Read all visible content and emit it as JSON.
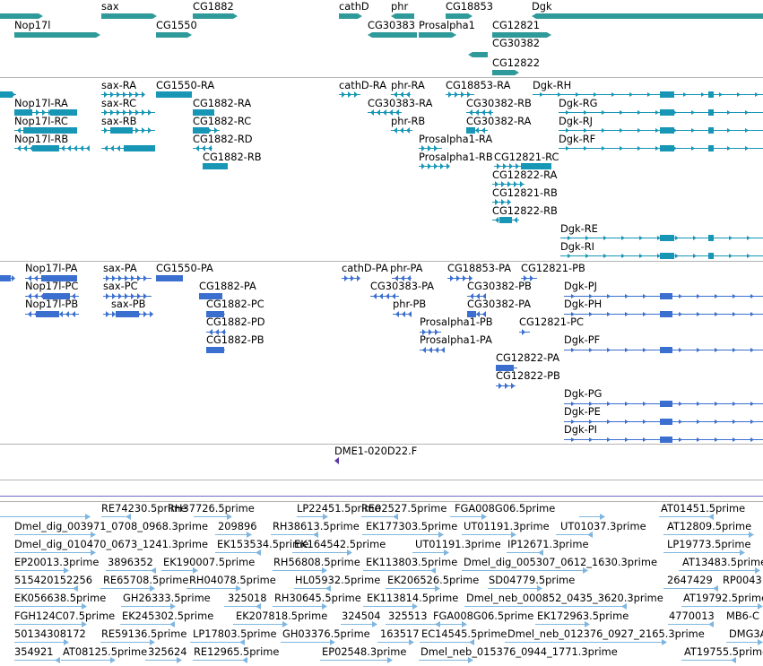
{
  "colors": {
    "gene": "#2f9a9a",
    "mrna": "#1796b6",
    "protein": "#3a6fcf",
    "est": "#7fb6e0",
    "clone": "#5a3aa8",
    "separator": "#b4b4b4"
  },
  "tracks": {
    "genes": {
      "labels": [
        "sax",
        "CG1882",
        "cathD",
        "phr",
        "CG18853",
        "Dgk",
        "Nop17l",
        "CG1550",
        "CG30383",
        "Prosalpha1",
        "CG12821",
        "CG30382",
        "CG12822"
      ]
    },
    "transcripts": {
      "labels": [
        "sax-RA",
        "CG1550-RA",
        "cathD-RA",
        "phr-RA",
        "CG18853-RA",
        "Dgk-RH",
        "Nop17l-RA",
        "sax-RC",
        "CG1882-RA",
        "CG30383-RA",
        "CG30382-RB",
        "Dgk-RG",
        "Nop17l-RC",
        "sax-RB",
        "CG1882-RC",
        "phr-RB",
        "CG30382-RA",
        "Dgk-RJ",
        "Nop17l-RB",
        "CG1882-RD",
        "Prosalpha1-RA",
        "Dgk-RF",
        "CG1882-RB",
        "Prosalpha1-RB",
        "CG12821-RC",
        "CG12822-RA",
        "CG12821-RB",
        "CG12822-RB",
        "Dgk-RE",
        "Dgk-RI"
      ]
    },
    "proteins": {
      "labels": [
        "Nop17l-PA",
        "sax-PA",
        "CG1550-PA",
        "cathD-PA",
        "phr-PA",
        "CG18853-PA",
        "CG12821-PB",
        "Nop17l-PC",
        "sax-PC",
        "CG1882-PA",
        "CG30383-PA",
        "CG30382-PB",
        "Dgk-PJ",
        "Nop17l-PB",
        "sax-PB",
        "CG1882-PC",
        "phr-PB",
        "CG30382-PA",
        "Dgk-PH",
        "CG1882-PD",
        "Prosalpha1-PB",
        "CG12821-PC",
        "CG1882-PB",
        "Prosalpha1-PA",
        "Dgk-PF",
        "CG12822-PA",
        "CG12822-PB",
        "Dgk-PG",
        "Dgk-PE",
        "Dgk-PI"
      ]
    },
    "clones": {
      "labels": [
        "DME1-020D22.F"
      ]
    },
    "ests": {
      "labels": [
        "RE74230.5prime",
        "RH37726.5prime",
        "LP22451.5prime",
        "RE02527.5prime",
        "FGA008G06.5prime",
        "AT01451.5prime",
        "Dmel_dig_003971_0708_0968.3prime",
        "209896",
        "RH38613.5prime",
        "EK177303.5prime",
        "UT01191.3prime",
        "UT01037.3prime",
        "AT12809.5prime",
        "Dmel_dig_010470_0673_1241.3prime",
        "EK153534.5prime",
        "EK164542.5prime",
        "UT01191.3prime",
        "IP12671.3prime",
        "LP19773.5prime",
        "EP20013.3prime",
        "3896352",
        "EK190007.5prime",
        "RH56808.5prime",
        "EK113803.5prime",
        "Dmel_dig_005307_0612_1630.3prime",
        "AT13483.5prime",
        "515420152256",
        "RE65708.5prime",
        "RH04078.5prime",
        "HL05932.5prime",
        "EK206526.5prime",
        "SD04779.5prime",
        "2647429",
        "RP0043",
        "EK056638.5prime",
        "GH26333.5prime",
        "325018",
        "RH30645.5prime",
        "EK113814.5prime",
        "Dmel_neb_000852_0435_3620.3prime",
        "AT19792.5prime",
        "FGH124C07.5prime",
        "EK245302.5prime",
        "EK207818.5prime",
        "324504",
        "325513",
        "FGA008G06.5prime",
        "EK172963.5prime",
        "4770013",
        "MB6-C",
        "50134308172",
        "RE59136.5prime",
        "LP17803.5prime",
        "GH03376.5prime",
        "163517",
        "EC14545.5prime",
        "Dmel_neb_012376_0927_2165.3prime",
        "DMG3A",
        "354921",
        "AT08125.5prime",
        "325624",
        "RE12965.5prime",
        "EP02548.3prime",
        "Dmel_neb_015376_0944_1771.3prime",
        "AT19755.5prime"
      ]
    }
  }
}
